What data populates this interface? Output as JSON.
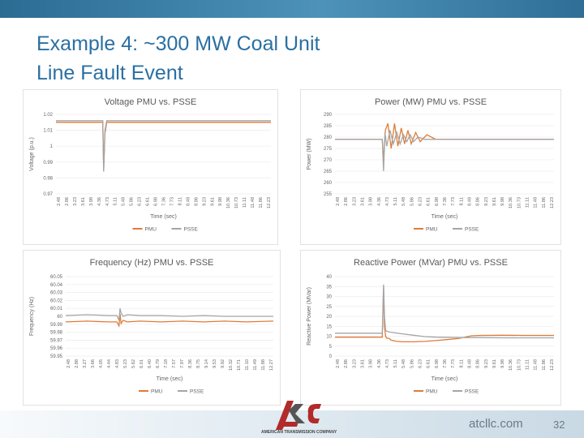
{
  "slide": {
    "title_line1": "Example 4: ~300 MW Coal Unit",
    "title_line2": "Line Fault Event",
    "url": "atcllc.com",
    "page_number": "32",
    "logo_text": "AMERICAN TRANSMISSION COMPANY",
    "colors": {
      "header_bar": "#3a7fa8",
      "title": "#2a6fa3",
      "pmu": "#e07b39",
      "psse": "#a5a5a5"
    }
  },
  "chart_data": [
    {
      "type": "line",
      "title": "Voltage PMU vs. PSSE",
      "xlabel": "Time (sec)",
      "ylabel": "Voltage (p.u.)",
      "ylim": [
        0.97,
        1.02
      ],
      "yticks": [
        "1.02",
        "1.01",
        "1",
        "0.99",
        "0.98",
        "0.97"
      ],
      "xticks": [
        "2.48",
        "2.86",
        "3.23",
        "3.61",
        "3.98",
        "4.36",
        "4.73",
        "5.11",
        "5.48",
        "5.86",
        "6.23",
        "6.61",
        "6.98",
        "7.36",
        "7.73",
        "8.11",
        "8.48",
        "8.86",
        "9.23",
        "9.61",
        "9.98",
        "10.36",
        "10.73",
        "11.11",
        "11.48",
        "11.86",
        "12.23"
      ],
      "xlim": [
        2.48,
        12.3
      ],
      "legend": [
        "PMU",
        "PSSE"
      ],
      "legend_position": "bottom",
      "series": [
        {
          "name": "PMU",
          "x": [
            2.48,
            4.5,
            4.62,
            4.66,
            4.72,
            4.8,
            5.0,
            6.0,
            8.0,
            10.0,
            12.3
          ],
          "y": [
            1.015,
            1.015,
            1.015,
            0.985,
            1.008,
            1.015,
            1.015,
            1.015,
            1.015,
            1.015,
            1.015
          ]
        },
        {
          "name": "PSSE",
          "x": [
            2.48,
            4.5,
            4.62,
            4.66,
            4.72,
            4.8,
            5.0,
            6.0,
            8.0,
            10.0,
            12.3
          ],
          "y": [
            1.016,
            1.016,
            1.016,
            0.984,
            1.01,
            1.016,
            1.016,
            1.016,
            1.016,
            1.016,
            1.016
          ]
        }
      ]
    },
    {
      "type": "line",
      "title": "Power (MW) PMU vs. PSSE",
      "xlabel": "Time (sec)",
      "ylabel": "Power (MW)",
      "ylim": [
        255,
        290
      ],
      "yticks": [
        "290",
        "285",
        "280",
        "275",
        "270",
        "265",
        "260",
        "255"
      ],
      "xticks": [
        "2.48",
        "2.86",
        "3.23",
        "3.61",
        "3.98",
        "4.36",
        "4.73",
        "5.11",
        "5.48",
        "5.86",
        "6.23",
        "6.61",
        "6.98",
        "7.36",
        "7.73",
        "8.11",
        "8.48",
        "8.86",
        "9.23",
        "9.61",
        "9.98",
        "10.36",
        "10.73",
        "11.11",
        "11.48",
        "11.86",
        "12.23"
      ],
      "xlim": [
        2.48,
        12.3
      ],
      "legend": [
        "PMU",
        "PSSE"
      ],
      "legend_position": "bottom",
      "series": [
        {
          "name": "PMU",
          "x": [
            2.48,
            4.6,
            4.66,
            4.74,
            4.85,
            5.0,
            5.15,
            5.3,
            5.45,
            5.6,
            5.75,
            5.9,
            6.1,
            6.3,
            6.6,
            7.0,
            8.0,
            10.0,
            12.3
          ],
          "y": [
            279,
            279,
            270,
            283,
            286,
            275,
            286,
            276,
            284,
            277,
            283,
            277,
            282,
            278,
            281,
            279,
            279,
            279,
            279
          ]
        },
        {
          "name": "PSSE",
          "x": [
            2.48,
            4.6,
            4.66,
            4.72,
            4.8,
            4.95,
            5.1,
            5.25,
            5.4,
            5.55,
            5.7,
            5.85,
            6.0,
            6.2,
            6.5,
            7.0,
            8.0,
            10.0,
            12.3
          ],
          "y": [
            279,
            279,
            265,
            282,
            276,
            283,
            277,
            282,
            277,
            281,
            278,
            281,
            278,
            280,
            279,
            279,
            279,
            279,
            279
          ]
        }
      ]
    },
    {
      "type": "line",
      "title": "Frequency (Hz) PMU vs. PSSE",
      "xlabel": "Time (sec)",
      "ylabel": "Frequency (Hz)",
      "ylim": [
        59.95,
        60.05
      ],
      "yticks": [
        "60.05",
        "60.04",
        "60.03",
        "60.02",
        "60.01",
        "60",
        "59.99",
        "59.98",
        "59.97",
        "59.96",
        "59.95"
      ],
      "xticks": [
        "2.48",
        "2.88",
        "3.27",
        "3.66",
        "4.05",
        "4.44",
        "4.83",
        "5.23",
        "5.62",
        "6.01",
        "6.40",
        "6.79",
        "7.18",
        "7.57",
        "7.97",
        "8.36",
        "8.75",
        "9.14",
        "9.53",
        "9.92",
        "10.32",
        "10.71",
        "11.10",
        "11.49",
        "11.88",
        "12.27"
      ],
      "xlim": [
        2.48,
        12.3
      ],
      "legend": [
        "PMU",
        "PSSE"
      ],
      "legend_position": "bottom",
      "series": [
        {
          "name": "PMU",
          "x": [
            2.48,
            3.5,
            4.5,
            4.9,
            5.0,
            5.05,
            5.1,
            5.2,
            5.4,
            6.0,
            7.0,
            8.0,
            9.0,
            10.0,
            11.0,
            12.3
          ],
          "y": [
            59.993,
            59.994,
            59.993,
            59.993,
            59.988,
            60.003,
            59.991,
            59.995,
            59.993,
            59.994,
            59.993,
            59.994,
            59.993,
            59.994,
            59.993,
            59.994
          ]
        },
        {
          "name": "PSSE",
          "x": [
            2.48,
            3.5,
            4.5,
            4.9,
            5.0,
            5.05,
            5.1,
            5.2,
            5.4,
            6.0,
            7.0,
            8.0,
            9.0,
            10.0,
            11.0,
            12.3
          ],
          "y": [
            60.001,
            60.002,
            60.001,
            60.001,
            59.995,
            60.01,
            60.004,
            60.0,
            60.002,
            60.001,
            60.001,
            60.0,
            60.001,
            60.0,
            60.0,
            60.0
          ]
        }
      ]
    },
    {
      "type": "line",
      "title": "Reactive Power (MVar) PMU vs. PSSE",
      "xlabel": "Time (sec)",
      "ylabel": "Reactive Power (MVar)",
      "ylim": [
        0,
        40
      ],
      "yticks": [
        "40",
        "35",
        "30",
        "25",
        "20",
        "15",
        "10",
        "5",
        "0"
      ],
      "xticks": [
        "2.48",
        "2.86",
        "3.23",
        "3.61",
        "3.98",
        "4.36",
        "4.73",
        "5.11",
        "5.48",
        "5.86",
        "6.23",
        "6.61",
        "6.98",
        "7.36",
        "7.73",
        "8.11",
        "8.48",
        "8.86",
        "9.23",
        "9.61",
        "9.98",
        "10.36",
        "10.73",
        "11.11",
        "11.48",
        "11.86",
        "12.23"
      ],
      "xlim": [
        2.48,
        12.3
      ],
      "legend": [
        "PMU",
        "PSSE"
      ],
      "legend_position": "bottom",
      "series": [
        {
          "name": "PMU",
          "x": [
            2.48,
            4.6,
            4.66,
            4.7,
            4.75,
            4.8,
            4.9,
            5.0,
            5.2,
            5.5,
            6.0,
            6.5,
            7.0,
            7.5,
            8.0,
            8.3,
            8.6,
            9.0,
            10.0,
            11.0,
            12.3
          ],
          "y": [
            9.5,
            9.5,
            35,
            15,
            10,
            9,
            9,
            8,
            7.5,
            7.2,
            7.2,
            7.4,
            7.8,
            8.3,
            8.8,
            9.5,
            10.2,
            10.4,
            10.5,
            10.4,
            10.4
          ]
        },
        {
          "name": "PSSE",
          "x": [
            2.48,
            4.6,
            4.66,
            4.7,
            4.75,
            4.8,
            4.9,
            5.0,
            5.5,
            6.0,
            6.5,
            7.0,
            8.0,
            9.0,
            10.0,
            11.0,
            12.3
          ],
          "y": [
            11.5,
            11.5,
            36,
            20,
            13,
            12.5,
            12.2,
            12,
            11.2,
            10.5,
            9.8,
            9.5,
            9.3,
            9.3,
            9.2,
            9.2,
            9.2
          ]
        }
      ]
    }
  ]
}
